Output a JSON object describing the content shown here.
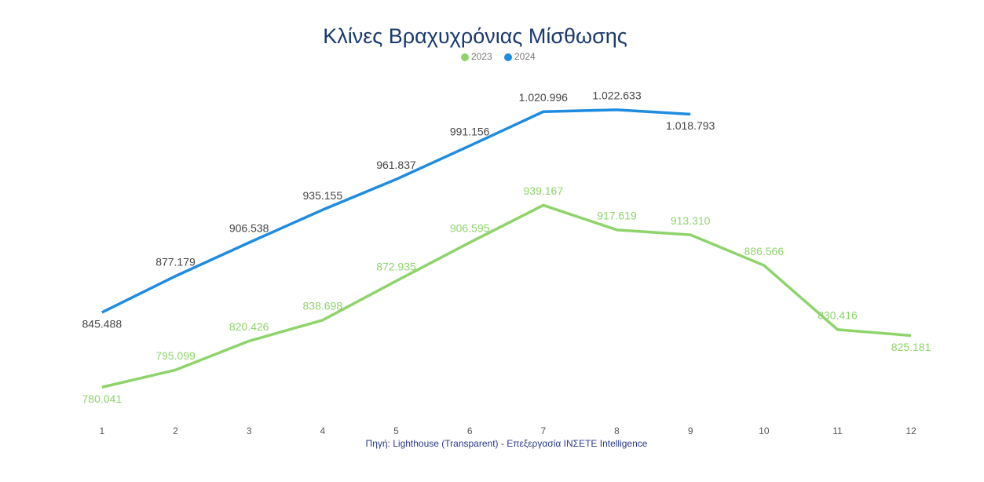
{
  "chart_data": {
    "type": "line",
    "title": "Κλίνες Βραχυχρόνιας Μίσθωσης",
    "source": "Πηγή: Lighthouse (Transparent) - Επεξεργασία ΙΝΣΕΤΕ Intelligence",
    "categories": [
      "1",
      "2",
      "3",
      "4",
      "5",
      "6",
      "7",
      "8",
      "9",
      "10",
      "11",
      "12"
    ],
    "series": [
      {
        "name": "2023",
        "color": "#8ed46b",
        "values": [
          780041,
          795099,
          820426,
          838698,
          872935,
          906595,
          939167,
          917619,
          913310,
          886566,
          830416,
          825181
        ],
        "value_labels": [
          "780.041",
          "795.099",
          "820.426",
          "838.698",
          "872.935",
          "906.595",
          "939.167",
          "917.619",
          "913.310",
          "886.566",
          "830.416",
          "825.181"
        ]
      },
      {
        "name": "2024",
        "color": "#1f8ce0",
        "values": [
          845488,
          877179,
          906538,
          935155,
          961837,
          991156,
          1020996,
          1022633,
          1018793,
          null,
          null,
          null
        ],
        "value_labels": [
          "845.488",
          "877.179",
          "906.538",
          "935.155",
          "961.837",
          "991.156",
          "1.020.996",
          "1.022.633",
          "1.018.793",
          null,
          null,
          null
        ]
      }
    ],
    "ylim": [
      750000,
      1050000
    ],
    "legend": "top"
  }
}
